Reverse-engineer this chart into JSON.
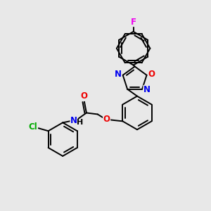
{
  "background_color": "#e8e8e8",
  "bond_color": "#000000",
  "figsize": [
    3.0,
    3.0
  ],
  "dpi": 100,
  "atom_colors": {
    "N": "#0000ee",
    "O": "#ee0000",
    "F": "#ee00ee",
    "Cl": "#00aa00",
    "C": "#000000",
    "H": "#000000"
  },
  "lw": 1.4,
  "r_hex": 24,
  "r_ox": 18,
  "inner_off": 3.8,
  "inner_shrink": 0.18,
  "font_size": 8.5
}
